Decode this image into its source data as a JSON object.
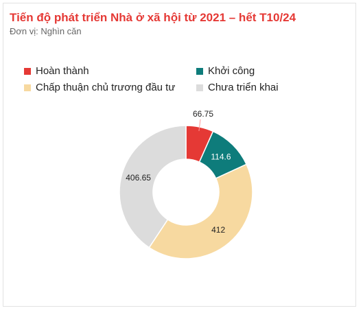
{
  "title": "Tiến độ phát triển Nhà ở xã hội từ 2021 – hết T10/24",
  "subtitle": "Đơn vị: Nghìn căn",
  "colors": {
    "hoan_thanh": "#e53935",
    "khoi_cong": "#0e7c7b",
    "chap_thuan": "#f7d9a0",
    "chua_trien_khai": "#dcdcdc",
    "title": "#e53935"
  },
  "chart_data": {
    "type": "pie",
    "variant": "donut",
    "legend_position": "top",
    "categories": [
      "Hoàn thành",
      "Khởi công",
      "Chấp thuận chủ trương đầu tư",
      "Chưa triển khai"
    ],
    "values": [
      66.75,
      114.6,
      412,
      406.65
    ],
    "data_labels": [
      "66.75",
      "114.6",
      "412",
      "406.65"
    ]
  }
}
